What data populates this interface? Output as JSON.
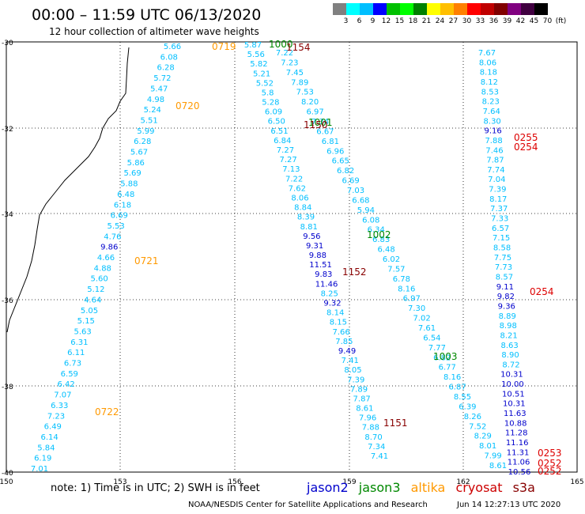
{
  "title": "00:00 – 11:59 UTC 06/13/2020",
  "subtitle": "12 hour collection of altimeter wave heights",
  "colorbar": {
    "labels": [
      "3",
      "6",
      "9",
      "12",
      "15",
      "18",
      "21",
      "24",
      "27",
      "30",
      "33",
      "36",
      "39",
      "42",
      "45",
      "70",
      "(ft)"
    ],
    "colors": [
      "#808080",
      "#00ffff",
      "#00bfff",
      "#0000ff",
      "#00c000",
      "#00ff00",
      "#008000",
      "#ffff00",
      "#ffbf00",
      "#ff8000",
      "#ff0000",
      "#c00000",
      "#800000",
      "#800080",
      "#400040",
      "#000000"
    ]
  },
  "axes": {
    "x_ticks": [
      "150",
      "153",
      "156",
      "159",
      "162",
      "165"
    ],
    "y_ticks": [
      "-30",
      "-32",
      "-34",
      "-36",
      "-38",
      "-40"
    ]
  },
  "note": "note: 1) Time is in UTC; 2) SWH is in feet",
  "legend": [
    {
      "name": "jason2",
      "color": "#0000cc"
    },
    {
      "name": "jason3",
      "color": "#008800"
    },
    {
      "name": "altika",
      "color": "#ff9900"
    },
    {
      "name": "cryosat",
      "color": "#cc0000"
    },
    {
      "name": "s3a",
      "color": "#880000"
    }
  ],
  "credit": "NOAA/NESDIS Center for Satellite Applications and Research",
  "timestamp": "Jun 14 12:27:13 UTC 2020",
  "tracks": [
    {
      "satellite": "altika",
      "values": [
        "5.66",
        "6.08",
        "6.28",
        "5.72",
        "5.47",
        "4.98",
        "5.24",
        "5.51",
        "5.99",
        "6.28",
        "5.67",
        "5.86",
        "5.69",
        "5.88",
        "6.48",
        "6.18",
        "6.69",
        "5.53",
        "4.76",
        "9.86",
        "4.66",
        "4.88",
        "5.60",
        "5.12",
        "4.64",
        "5.05",
        "5.15",
        "5.63",
        "6.31",
        "6.11",
        "6.73",
        "6.59",
        "6.42",
        "7.07",
        "6.33",
        "7.23",
        "6.49",
        "6.14",
        "5.84",
        "6.19",
        "7.01"
      ],
      "times": [
        "0719",
        "0720",
        "0721",
        "0722"
      ]
    },
    {
      "satellite": "jason3_a",
      "values": [
        "7.67",
        "8.06",
        "8.18",
        "8.12",
        "8.53",
        "8.23",
        "7.64",
        "8.30",
        "9.16",
        "7.88",
        "7.46",
        "7.87",
        "7.74",
        "7.04",
        "7.39",
        "8.17",
        "7.37",
        "7.33",
        "6.57",
        "7.15",
        "8.58",
        "7.75",
        "7.73",
        "8.57",
        "9.11",
        "9.82",
        "9.36",
        "8.89",
        "8.98",
        "8.21",
        "8.63",
        "8.90",
        "8.72",
        "10.31",
        "10.00",
        "10.51",
        "10.31",
        "11.63",
        "10.88",
        "11.28",
        "11.16",
        "11.31",
        "11.06",
        "10.56"
      ]
    },
    {
      "satellite": "cryosat_right",
      "times": [
        "0255",
        "0254",
        "0254",
        "0253",
        "0252",
        "0252"
      ]
    },
    {
      "satellite": "s3a_jason3",
      "values": [
        "5.87",
        "5.56",
        "5.82",
        "5.21",
        "5.52",
        "5.8",
        "5.28",
        "6.09",
        "6.50",
        "6.51",
        "6.84",
        "7.27",
        "7.27",
        "7.13",
        "7.22",
        "7.62",
        "8.06",
        "8.84",
        "8.39",
        "8.81",
        "9.56",
        "9.31",
        "9.88",
        "11.51",
        "9.83",
        "11.46",
        "8.25",
        "9.32",
        "8.14",
        "8.15",
        "7.66",
        "7.85",
        "9.49",
        "7.41",
        "8.05",
        "7.39",
        "7.89",
        "7.87",
        "8.61",
        "7.96",
        "7.88",
        "8.70",
        "7.34",
        "7.41",
        "7.22",
        "7.23",
        "7.45",
        "7.89",
        "7.53",
        "8.20",
        "6.97",
        "7.34",
        "6.67",
        "6.81",
        "6.96",
        "6.65",
        "6.82",
        "6.69",
        "7.03",
        "6.68",
        "5.94",
        "6.08",
        "6.34",
        "6.83",
        "6.48",
        "6.02",
        "7.57",
        "6.78",
        "8.16",
        "6.97",
        "7.30",
        "7.02",
        "7.61",
        "6.54",
        "7.77",
        "6.82",
        "6.77",
        "8.16",
        "6.87",
        "8.55",
        "6.39",
        "8.26",
        "7.52",
        "8.29",
        "8.01",
        "7.99",
        "8.61"
      ],
      "times": [
        "1000",
        "1154",
        "1001",
        "1150",
        "1002",
        "1152",
        "1003",
        "1151"
      ]
    }
  ]
}
